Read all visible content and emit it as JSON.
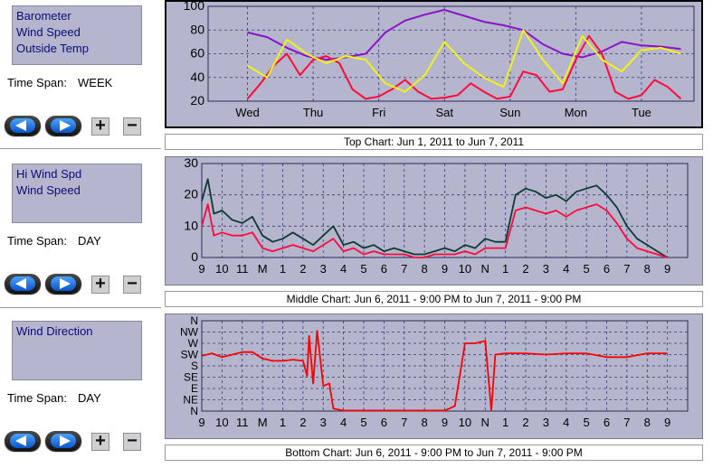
{
  "panels": [
    {
      "series": [
        "Barometer",
        "Wind Speed",
        "Outside Temp"
      ],
      "time_span_label": "Time Span:",
      "time_span_value": "WEEK"
    },
    {
      "series": [
        "Hi Wind Spd",
        "Wind Speed"
      ],
      "time_span_label": "Time Span:",
      "time_span_value": "DAY"
    },
    {
      "series": [
        "Wind Direction"
      ],
      "time_span_label": "Time Span:",
      "time_span_value": "DAY"
    }
  ],
  "controls": {
    "plus": "+",
    "minus": "−"
  },
  "captions": {
    "top": "Top Chart:  Jun 1, 2011  to  Jun 7, 2011",
    "middle": "Middle Chart:  Jun 6, 2011 - 9:00 PM  to  Jun 7, 2011 - 9:00 PM",
    "bottom": "Bottom Chart:  Jun 6, 2011 - 9:00 PM  to  Jun 7, 2011 - 9:00 PM"
  },
  "colors": {
    "plot_bg": "#b5b5cd",
    "barometer": "#8a12c8",
    "wind_speed": "#ff0a3c",
    "outside_temp": "#f2f21a",
    "hi_wind": "#0d3b34",
    "direction": "#ff0000",
    "grid": "#3a3a7a"
  },
  "chart_data": [
    {
      "type": "line",
      "chart": "top",
      "ylim": [
        20,
        100
      ],
      "yticks": [
        "100",
        "80",
        "60",
        "40",
        "20"
      ],
      "xticks": [
        "Wed",
        "Thu",
        "Fri",
        "Sat",
        "Sun",
        "Mon",
        "Tue"
      ],
      "series": [
        {
          "name": "Barometer",
          "x": [
            0,
            0.3,
            0.6,
            0.9,
            1.2,
            1.5,
            1.8,
            2.1,
            2.4,
            2.7,
            3.0,
            3.3,
            3.6,
            3.9,
            4.2,
            4.5,
            4.8,
            5.1,
            5.4,
            5.7,
            6.0,
            6.3,
            6.6
          ],
          "y": [
            78,
            74,
            65,
            58,
            55,
            57,
            60,
            78,
            88,
            93,
            97,
            92,
            87,
            84,
            80,
            68,
            60,
            57,
            62,
            70,
            67,
            66,
            64
          ]
        },
        {
          "name": "Wind Speed",
          "x": [
            0,
            0.2,
            0.4,
            0.6,
            0.8,
            1.0,
            1.2,
            1.4,
            1.6,
            1.8,
            2.0,
            2.2,
            2.4,
            2.6,
            2.8,
            3.0,
            3.2,
            3.4,
            3.6,
            3.8,
            4.0,
            4.2,
            4.4,
            4.6,
            4.8,
            5.0,
            5.2,
            5.4,
            5.6,
            5.8,
            6.0,
            6.2,
            6.4,
            6.6
          ],
          "y": [
            22,
            35,
            50,
            60,
            42,
            55,
            58,
            52,
            30,
            22,
            24,
            30,
            38,
            28,
            22,
            23,
            25,
            35,
            28,
            22,
            24,
            45,
            42,
            28,
            30,
            55,
            75,
            60,
            28,
            22,
            25,
            38,
            32,
            22
          ]
        },
        {
          "name": "Outside Temp",
          "x": [
            0,
            0.3,
            0.6,
            0.9,
            1.2,
            1.5,
            1.8,
            2.1,
            2.4,
            2.7,
            3.0,
            3.3,
            3.6,
            3.9,
            4.2,
            4.5,
            4.8,
            5.1,
            5.4,
            5.7,
            6.0,
            6.3,
            6.6
          ],
          "y": [
            50,
            40,
            72,
            60,
            52,
            58,
            55,
            35,
            28,
            42,
            70,
            52,
            40,
            32,
            80,
            55,
            35,
            75,
            55,
            45,
            63,
            65,
            60
          ]
        }
      ]
    },
    {
      "type": "line",
      "chart": "middle",
      "ylim": [
        0,
        30
      ],
      "yticks": [
        "30",
        "20",
        "10",
        "0"
      ],
      "xticks": [
        "9",
        "10",
        "11",
        "M",
        "1",
        "2",
        "3",
        "4",
        "5",
        "6",
        "7",
        "8",
        "9",
        "10",
        "N",
        "1",
        "2",
        "3",
        "4",
        "5",
        "6",
        "7",
        "8",
        "9"
      ],
      "series": [
        {
          "name": "Hi Wind Spd",
          "x": [
            0,
            0.3,
            0.6,
            1,
            1.5,
            2,
            2.5,
            3,
            3.5,
            4,
            4.5,
            5,
            5.5,
            6,
            6.5,
            7,
            7.5,
            8,
            8.5,
            9,
            9.5,
            10,
            10.5,
            11,
            11.5,
            12,
            12.5,
            13,
            13.5,
            14,
            14.5,
            15,
            15.5,
            16,
            16.5,
            17,
            17.5,
            18,
            18.5,
            19,
            19.5,
            20,
            20.5,
            21,
            21.5,
            22,
            22.5,
            23
          ],
          "y": [
            18,
            25,
            14,
            15,
            12,
            11,
            13,
            7,
            5,
            6,
            8,
            6,
            4,
            7,
            10,
            4,
            5,
            3,
            4,
            2,
            3,
            2,
            1,
            1,
            2,
            3,
            2,
            4,
            3,
            6,
            5,
            5,
            20,
            22,
            21,
            19,
            20,
            18,
            21,
            22,
            23,
            20,
            16,
            10,
            6,
            4,
            2,
            0
          ]
        },
        {
          "name": "Wind Speed",
          "x": [
            0,
            0.3,
            0.6,
            1,
            1.5,
            2,
            2.5,
            3,
            3.5,
            4,
            4.5,
            5,
            5.5,
            6,
            6.5,
            7,
            7.5,
            8,
            8.5,
            9,
            9.5,
            10,
            10.5,
            11,
            11.5,
            12,
            12.5,
            13,
            13.5,
            14,
            14.5,
            15,
            15.5,
            16,
            16.5,
            17,
            17.5,
            18,
            18.5,
            19,
            19.5,
            20,
            20.5,
            21,
            21.5,
            22,
            22.5,
            23
          ],
          "y": [
            10,
            17,
            7,
            8,
            7,
            7,
            8,
            3,
            2,
            3,
            4,
            3,
            2,
            4,
            6,
            2,
            3,
            1,
            2,
            1,
            1,
            1,
            0,
            0,
            1,
            1,
            1,
            2,
            1,
            3,
            3,
            3,
            15,
            16,
            15,
            14,
            15,
            13,
            15,
            16,
            17,
            15,
            11,
            6,
            3,
            2,
            1,
            0
          ]
        }
      ]
    },
    {
      "type": "line",
      "chart": "bottom",
      "ylim": [
        0,
        360
      ],
      "yticks": [
        "N",
        "NW",
        "W",
        "SW",
        "S",
        "SE",
        "E",
        "NE",
        "N"
      ],
      "xticks": [
        "9",
        "10",
        "11",
        "M",
        "1",
        "2",
        "3",
        "4",
        "5",
        "6",
        "7",
        "8",
        "9",
        "10",
        "N",
        "1",
        "2",
        "3",
        "4",
        "5",
        "6",
        "7",
        "8",
        "9"
      ],
      "series": [
        {
          "name": "Wind Direction",
          "x": [
            0,
            0.5,
            1,
            1.5,
            2,
            2.5,
            3,
            3.5,
            4,
            4.5,
            5,
            5.2,
            5.3,
            5.5,
            5.7,
            6,
            6.3,
            6.5,
            7,
            7.5,
            8,
            9,
            10,
            11,
            12,
            12.5,
            13,
            13.5,
            14,
            14.3,
            14.5,
            15,
            16,
            17,
            18,
            19,
            20,
            21,
            22,
            23
          ],
          "y": [
            220,
            230,
            215,
            225,
            235,
            235,
            210,
            200,
            200,
            205,
            200,
            140,
            300,
            110,
            320,
            100,
            110,
            10,
            2,
            2,
            2,
            2,
            2,
            2,
            2,
            20,
            270,
            270,
            280,
            2,
            225,
            230,
            230,
            225,
            230,
            230,
            215,
            215,
            230,
            230
          ]
        }
      ]
    }
  ]
}
